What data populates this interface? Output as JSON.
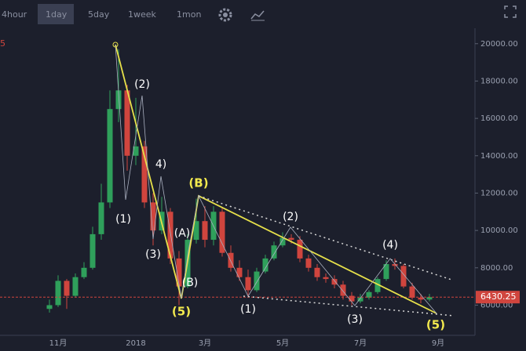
{
  "toolbar": {
    "intervals": [
      "4hour",
      "1day",
      "5day",
      "1week",
      "1mon"
    ],
    "selected": 1
  },
  "chart_data": {
    "type": "candlestick",
    "corner_label": "5",
    "categories": [
      null,
      "11月",
      null,
      null,
      null,
      null,
      null,
      null,
      null,
      null,
      "2018",
      null,
      null,
      null,
      null,
      null,
      null,
      null,
      "3月",
      null,
      null,
      null,
      null,
      null,
      null,
      null,
      null,
      "5月",
      null,
      null,
      null,
      null,
      null,
      null,
      null,
      null,
      "7月",
      null,
      null,
      null,
      null,
      null,
      null,
      null,
      null,
      "9月"
    ],
    "open": [
      5800,
      6000,
      7300,
      6500,
      7500,
      8000,
      9800,
      11500,
      16500,
      17500,
      14000,
      14500,
      11500,
      10000,
      11000,
      8500,
      7000,
      9500,
      10500,
      9500,
      11000,
      8800,
      8000,
      7500,
      6800,
      7800,
      8500,
      9200,
      9600,
      9500,
      8500,
      8000,
      7500,
      7400,
      7100,
      6500,
      6200,
      6400,
      6700,
      7400,
      8200,
      8100,
      7000,
      6400,
      6300,
      null
    ],
    "high": [
      6300,
      7600,
      7400,
      7700,
      8300,
      10200,
      12500,
      17500,
      19700,
      17800,
      17100,
      14800,
      12000,
      11800,
      11200,
      8900,
      9800,
      11700,
      11300,
      11300,
      11200,
      9200,
      8400,
      7900,
      8000,
      8700,
      9400,
      9900,
      9800,
      9700,
      8700,
      8200,
      7700,
      7600,
      7300,
      6700,
      6600,
      6800,
      7500,
      8400,
      8500,
      8200,
      7200,
      6600,
      6600,
      null
    ],
    "low": [
      5600,
      5900,
      5800,
      6400,
      7400,
      7900,
      9500,
      11200,
      15800,
      13200,
      13500,
      11200,
      9200,
      9800,
      8200,
      6000,
      6900,
      9300,
      9100,
      9200,
      8600,
      7800,
      7300,
      6500,
      6700,
      7700,
      8400,
      9100,
      9300,
      8300,
      7800,
      7300,
      7200,
      6900,
      6300,
      6000,
      6100,
      6300,
      6600,
      7300,
      7900,
      6900,
      6300,
      6100,
      6200,
      null
    ],
    "close": [
      6000,
      7300,
      6500,
      7500,
      8000,
      9800,
      11500,
      16500,
      17500,
      14000,
      14500,
      11500,
      10000,
      11000,
      8500,
      7000,
      9500,
      10500,
      9500,
      11000,
      8800,
      8000,
      7500,
      6800,
      7800,
      8500,
      9200,
      9600,
      9500,
      8500,
      8000,
      7500,
      7400,
      7100,
      6500,
      6200,
      6400,
      6700,
      7400,
      8200,
      8100,
      7000,
      6400,
      6300,
      6430,
      null
    ],
    "up_color": "#2fa05b",
    "down_color": "#d0453e",
    "ylim": [
      4300,
      21500
    ],
    "yticks": [
      {
        "value": 6000,
        "label": "6000.00"
      },
      {
        "value": 8000,
        "label": "8000.00"
      },
      {
        "value": 10000,
        "label": "10000.00"
      },
      {
        "value": 12000,
        "label": "12000.00"
      },
      {
        "value": 14000,
        "label": "14000.00"
      },
      {
        "value": 16000,
        "label": "16000.00"
      },
      {
        "value": 18000,
        "label": "18000.00"
      },
      {
        "value": 20000,
        "label": "20000.00"
      }
    ],
    "current_price": 6430.25,
    "wave_labels": [
      "(2)",
      "(1)",
      "4)",
      "(3)",
      "(A)",
      "(B)",
      "(2)",
      "(1)",
      "(3)",
      "(4)"
    ],
    "highlight_labels": [
      "(B)",
      "(5)",
      "(5)"
    ]
  }
}
